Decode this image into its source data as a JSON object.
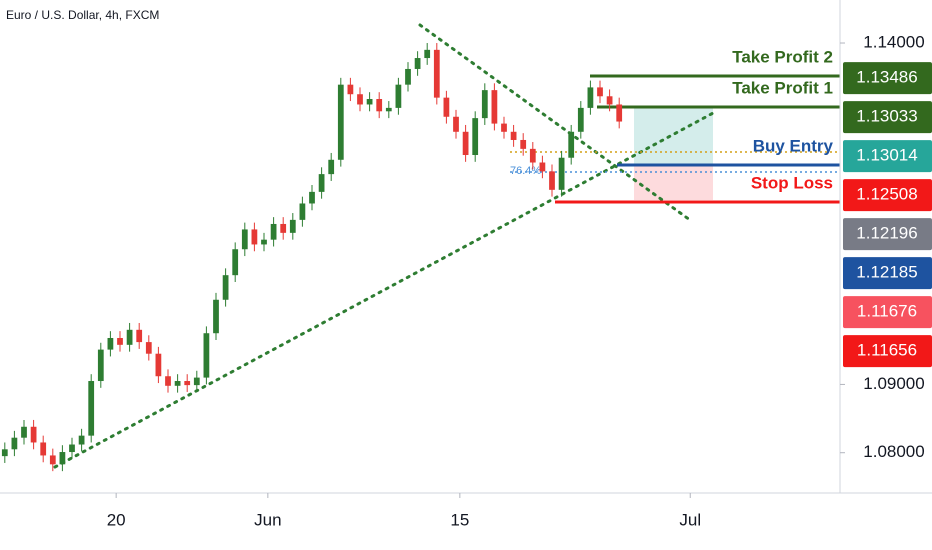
{
  "chart_data": {
    "type": "candlestick",
    "title": "Euro / U.S. Dollar, 4h, FXCM",
    "up_color": "#2e7d32",
    "down_color": "#e53935",
    "candles": [
      [
        1.0795,
        1.0815,
        1.0785,
        1.0805
      ],
      [
        1.0805,
        1.0832,
        1.0795,
        1.0822
      ],
      [
        1.0822,
        1.0848,
        1.0812,
        1.0838
      ],
      [
        1.0838,
        1.0848,
        1.0805,
        1.0815
      ],
      [
        1.0815,
        1.0825,
        1.0786,
        1.0796
      ],
      [
        1.0796,
        1.0806,
        1.0773,
        1.0783
      ],
      [
        1.0783,
        1.0811,
        1.0773,
        1.0801
      ],
      [
        1.0801,
        1.0822,
        1.0791,
        1.0812
      ],
      [
        1.0812,
        1.0835,
        1.0802,
        1.0825
      ],
      [
        1.0825,
        1.0915,
        1.0815,
        1.0905
      ],
      [
        1.0905,
        1.0961,
        1.0895,
        1.0951
      ],
      [
        1.0951,
        1.0978,
        1.0941,
        1.0968
      ],
      [
        1.0968,
        1.0978,
        1.0948,
        1.0958
      ],
      [
        1.0958,
        1.099,
        1.0948,
        1.098
      ],
      [
        1.098,
        1.099,
        1.0952,
        1.0962
      ],
      [
        1.0962,
        1.0972,
        1.0935,
        1.0945
      ],
      [
        1.0945,
        1.0955,
        1.0902,
        1.0912
      ],
      [
        1.0912,
        1.0922,
        1.0888,
        1.0898
      ],
      [
        1.0898,
        1.0915,
        1.0888,
        1.0905
      ],
      [
        1.0905,
        1.0915,
        1.0889,
        1.0899
      ],
      [
        1.0899,
        1.092,
        1.0889,
        1.091
      ],
      [
        1.091,
        1.0985,
        1.09,
        1.0975
      ],
      [
        1.0975,
        1.1034,
        1.0965,
        1.1024
      ],
      [
        1.1024,
        1.107,
        1.1014,
        1.106
      ],
      [
        1.106,
        1.1108,
        1.105,
        1.1098
      ],
      [
        1.1098,
        1.1137,
        1.1088,
        1.1127
      ],
      [
        1.1127,
        1.1137,
        1.1095,
        1.1105
      ],
      [
        1.1105,
        1.1122,
        1.1095,
        1.1112
      ],
      [
        1.1112,
        1.1145,
        1.1102,
        1.1135
      ],
      [
        1.1135,
        1.1145,
        1.1112,
        1.1122
      ],
      [
        1.1122,
        1.1151,
        1.1112,
        1.1141
      ],
      [
        1.1141,
        1.1175,
        1.1131,
        1.1165
      ],
      [
        1.1165,
        1.1192,
        1.1155,
        1.1182
      ],
      [
        1.1182,
        1.1218,
        1.1172,
        1.1208
      ],
      [
        1.1208,
        1.1239,
        1.1198,
        1.1229
      ],
      [
        1.1229,
        1.1349,
        1.1219,
        1.1339
      ],
      [
        1.1339,
        1.1349,
        1.1315,
        1.1325
      ],
      [
        1.1325,
        1.1335,
        1.13,
        1.131
      ],
      [
        1.131,
        1.1328,
        1.13,
        1.1318
      ],
      [
        1.1318,
        1.1328,
        1.129,
        1.13
      ],
      [
        1.13,
        1.1315,
        1.129,
        1.1305
      ],
      [
        1.1305,
        1.1349,
        1.1295,
        1.1339
      ],
      [
        1.1339,
        1.1372,
        1.1329,
        1.1362
      ],
      [
        1.1362,
        1.1388,
        1.1352,
        1.1378
      ],
      [
        1.1378,
        1.14,
        1.1368,
        1.139
      ],
      [
        1.139,
        1.14,
        1.131,
        1.132
      ],
      [
        1.132,
        1.133,
        1.1282,
        1.1292
      ],
      [
        1.1292,
        1.1302,
        1.126,
        1.127
      ],
      [
        1.127,
        1.128,
        1.1226,
        1.1236
      ],
      [
        1.1236,
        1.13,
        1.1226,
        1.129
      ],
      [
        1.129,
        1.1341,
        1.128,
        1.1331
      ],
      [
        1.1331,
        1.1341,
        1.1272,
        1.1282
      ],
      [
        1.1282,
        1.1292,
        1.126,
        1.127
      ],
      [
        1.127,
        1.128,
        1.1248,
        1.1258
      ],
      [
        1.1258,
        1.1268,
        1.1235,
        1.1245
      ],
      [
        1.1245,
        1.1255,
        1.1215,
        1.1225
      ],
      [
        1.1225,
        1.1235,
        1.1202,
        1.1212
      ],
      [
        1.1212,
        1.1222,
        1.1175,
        1.1185
      ],
      [
        1.1185,
        1.1242,
        1.1175,
        1.1232
      ],
      [
        1.1232,
        1.128,
        1.1222,
        1.127
      ],
      [
        1.127,
        1.1315,
        1.126,
        1.1305
      ],
      [
        1.1305,
        1.1345,
        1.1295,
        1.1335
      ],
      [
        1.1335,
        1.1345,
        1.1312,
        1.1322
      ],
      [
        1.1322,
        1.1332,
        1.13,
        1.131
      ],
      [
        1.131,
        1.132,
        1.1275,
        1.1285
      ]
    ],
    "xlim": [
      -0.5,
      87
    ],
    "xticks": [
      {
        "value": 11.6,
        "label": "20"
      },
      {
        "value": 27.4,
        "label": "Jun"
      },
      {
        "value": 47.4,
        "label": "15"
      },
      {
        "value": 71.4,
        "label": "Jul"
      }
    ],
    "ylim": [
      1.0741,
      1.1463
    ],
    "yticks": [
      {
        "value": 1.14,
        "label": "1.14000"
      },
      {
        "value": 1.09,
        "label": "1.09000"
      },
      {
        "value": 1.08,
        "label": "1.08000"
      }
    ],
    "price_labels": [
      {
        "value": 1.13486,
        "color": "#33691e"
      },
      {
        "value": 1.13033,
        "color": "#33691e"
      },
      {
        "value": 1.13014,
        "color": "#26a69a"
      },
      {
        "value": 1.12508,
        "color": "#f21818"
      },
      {
        "value": 1.12196,
        "color": "#787b86"
      },
      {
        "value": 1.12185,
        "color": "#1e53a0"
      },
      {
        "value": 1.11676,
        "color": "#f7525f"
      },
      {
        "value": 1.11656,
        "color": "#f21818"
      }
    ],
    "annotations": {
      "take_profit_2": "Take Profit 2",
      "take_profit_1": "Take Profit 1",
      "buy_entry": "Buy Entry",
      "stop_loss": "Stop Loss",
      "fib": "76.4%"
    }
  }
}
